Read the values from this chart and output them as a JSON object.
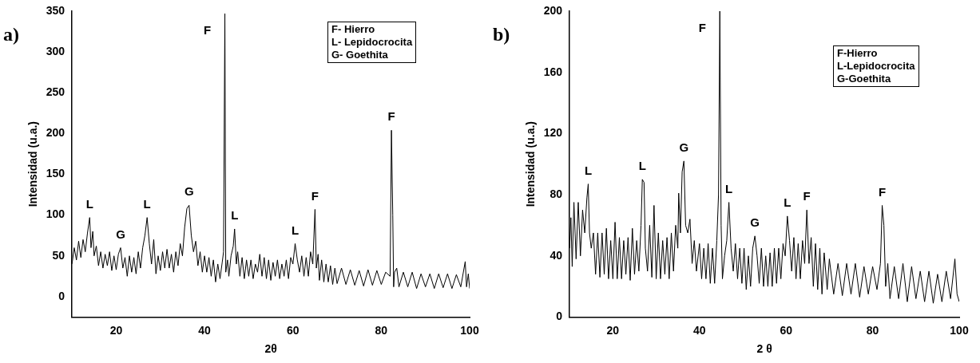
{
  "chart_data": [
    {
      "type": "line",
      "title": "a)",
      "xlabel": "2θ",
      "ylabel": "Intensidad (u.a.)",
      "xlim": [
        10,
        100
      ],
      "xticks": [
        20,
        40,
        60,
        80,
        100
      ],
      "ylim": [
        -25,
        350
      ],
      "yticks": [
        0,
        50,
        100,
        150,
        200,
        250,
        300,
        350
      ],
      "grid": false,
      "legend": false,
      "marker": "none",
      "line_style": "solid",
      "series": [
        {
          "color": "#000000",
          "x": [
            10,
            10.5,
            11,
            11.5,
            12,
            12.5,
            13,
            13.5,
            14,
            14.3,
            14.7,
            15,
            15.5,
            16,
            16.5,
            17,
            17.5,
            18,
            18.5,
            19,
            19.5,
            20,
            20.5,
            21,
            21.5,
            22,
            22.5,
            23,
            23.5,
            24,
            24.5,
            25,
            25.5,
            26,
            26.5,
            27,
            27.5,
            28,
            28.5,
            29,
            29.5,
            30,
            30.5,
            31,
            31.5,
            32,
            32.5,
            33,
            33.5,
            34,
            34.5,
            35,
            35.5,
            36,
            36.5,
            37,
            37.5,
            38,
            38.5,
            39,
            39.5,
            40,
            40.5,
            41,
            41.5,
            42,
            42.5,
            43,
            43.5,
            44,
            44.3,
            44.6,
            44.8,
            45.2,
            45.5,
            46,
            46.5,
            46.8,
            47.2,
            47.5,
            48,
            48.5,
            49,
            49.5,
            50,
            50.5,
            51,
            51.5,
            52,
            52.5,
            53,
            53.5,
            54,
            54.5,
            55,
            55.5,
            56,
            56.5,
            57,
            57.5,
            58,
            58.5,
            59,
            59.5,
            60,
            60.5,
            61,
            61.5,
            62,
            62.5,
            63,
            63.5,
            64,
            64.5,
            65,
            65.3,
            65.7,
            66,
            66.5,
            67,
            67.5,
            68,
            68.5,
            69,
            69.5,
            70,
            71,
            72,
            73,
            74,
            75,
            76,
            77,
            78,
            79,
            80,
            81,
            82,
            82.3,
            82.6,
            82.8,
            83,
            83.5,
            84,
            85,
            86,
            87,
            88,
            89,
            90,
            91,
            92,
            93,
            94,
            95,
            96,
            97,
            98,
            99,
            99.3,
            99.7,
            100
          ],
          "values": [
            40,
            60,
            45,
            68,
            48,
            70,
            55,
            78,
            97,
            60,
            80,
            50,
            62,
            38,
            55,
            35,
            52,
            38,
            55,
            32,
            50,
            33,
            52,
            60,
            35,
            48,
            25,
            50,
            30,
            48,
            28,
            55,
            35,
            60,
            75,
            97,
            65,
            40,
            70,
            28,
            50,
            32,
            55,
            35,
            58,
            35,
            52,
            30,
            55,
            38,
            65,
            50,
            85,
            108,
            112,
            75,
            55,
            68,
            38,
            55,
            30,
            50,
            30,
            48,
            25,
            45,
            18,
            40,
            22,
            42,
            55,
            347,
            30,
            45,
            25,
            50,
            62,
            83,
            40,
            55,
            25,
            48,
            22,
            45,
            25,
            45,
            22,
            40,
            30,
            52,
            25,
            48,
            22,
            45,
            20,
            42,
            25,
            45,
            22,
            40,
            25,
            45,
            22,
            48,
            40,
            65,
            45,
            30,
            50,
            25,
            48,
            25,
            55,
            40,
            107,
            35,
            52,
            20,
            45,
            18,
            40,
            18,
            38,
            15,
            35,
            16,
            35,
            15,
            33,
            14,
            32,
            13,
            33,
            14,
            32,
            15,
            30,
            25,
            204,
            100,
            12,
            30,
            35,
            12,
            30,
            12,
            30,
            10,
            28,
            12,
            28,
            10,
            28,
            11,
            28,
            10,
            27,
            12,
            43,
            12,
            28,
            10
          ]
        }
      ],
      "annotations": [
        "F- Hierro",
        "L- Lepidocrocita",
        "G- Goethita",
        {
          "text": "L",
          "x": 14,
          "y": 97
        },
        {
          "text": "G",
          "x": 21,
          "y": 60
        },
        {
          "text": "L",
          "x": 27,
          "y": 97
        },
        {
          "text": "G",
          "x": 36.5,
          "y": 112
        },
        {
          "text": "F",
          "x": 44.6,
          "y": 347
        },
        {
          "text": "L",
          "x": 46.8,
          "y": 83
        },
        {
          "text": "L",
          "x": 60.5,
          "y": 65
        },
        {
          "text": "F",
          "x": 65,
          "y": 107
        },
        {
          "text": "F",
          "x": 82.3,
          "y": 204
        }
      ]
    },
    {
      "type": "line",
      "title": "b)",
      "xlabel": "2 θ",
      "ylabel": "Intensidad (u.a.)",
      "xlim": [
        10,
        100
      ],
      "xticks": [
        20,
        40,
        60,
        80,
        100
      ],
      "ylim": [
        0,
        200
      ],
      "yticks": [
        0,
        40,
        80,
        120,
        160,
        200
      ],
      "grid": false,
      "legend": false,
      "marker": "none",
      "line_style": "solid",
      "series": [
        {
          "color": "#000000",
          "x": [
            10,
            10.3,
            10.6,
            11,
            11.5,
            12,
            12.5,
            13,
            13.5,
            14,
            14.3,
            14.6,
            15,
            15.5,
            16,
            16.5,
            17,
            17.5,
            18,
            18.5,
            19,
            19.5,
            20,
            20.5,
            21,
            21.5,
            22,
            22.5,
            23,
            23.5,
            24,
            24.5,
            25,
            25.5,
            26,
            26.5,
            26.8,
            27.2,
            27.5,
            28,
            28.5,
            29,
            29.5,
            30,
            30.5,
            31,
            31.5,
            32,
            32.5,
            33,
            33.5,
            34,
            34.5,
            35,
            35.2,
            35.6,
            36,
            36.4,
            36.8,
            37.3,
            37.8,
            38.3,
            38.8,
            39.3,
            40,
            40.5,
            41,
            41.5,
            42,
            42.5,
            43,
            43.5,
            44,
            44.4,
            44.7,
            45,
            45.3,
            45.8,
            46.3,
            46.8,
            47.3,
            47.8,
            48.3,
            48.8,
            49.3,
            49.8,
            50.3,
            50.8,
            51.3,
            51.8,
            52.3,
            52.8,
            53.3,
            53.8,
            54.3,
            54.8,
            55.3,
            55.8,
            56.3,
            56.8,
            57.3,
            57.8,
            58.3,
            58.8,
            59.3,
            59.8,
            60.3,
            60.8,
            61.3,
            61.8,
            62.3,
            62.8,
            63.3,
            63.8,
            64.3,
            64.8,
            65.3,
            65.8,
            66.3,
            66.8,
            67.3,
            67.8,
            68.3,
            68.8,
            69.5,
            70,
            71,
            72,
            73,
            74,
            75,
            76,
            77,
            78,
            79,
            80,
            81,
            81.8,
            82.2,
            82.6,
            83,
            83.5,
            84,
            85,
            86,
            87,
            88,
            89,
            90,
            91,
            92,
            93,
            94,
            95,
            96,
            97,
            98,
            99,
            99.5,
            100
          ],
          "values": [
            45,
            65,
            33,
            75,
            38,
            75,
            40,
            70,
            55,
            78,
            87,
            55,
            45,
            55,
            28,
            55,
            26,
            55,
            28,
            58,
            25,
            50,
            25,
            62,
            25,
            52,
            25,
            50,
            28,
            52,
            24,
            58,
            28,
            50,
            30,
            60,
            90,
            88,
            45,
            30,
            60,
            26,
            73,
            25,
            55,
            25,
            50,
            28,
            52,
            25,
            55,
            30,
            60,
            45,
            81,
            55,
            95,
            102,
            60,
            55,
            64,
            35,
            50,
            30,
            48,
            25,
            45,
            25,
            48,
            22,
            45,
            22,
            50,
            80,
            200,
            60,
            25,
            40,
            50,
            75,
            45,
            30,
            48,
            25,
            45,
            22,
            45,
            18,
            40,
            20,
            45,
            53,
            40,
            22,
            45,
            20,
            40,
            20,
            42,
            20,
            45,
            22,
            45,
            25,
            48,
            40,
            66,
            50,
            30,
            52,
            25,
            48,
            25,
            50,
            35,
            70,
            35,
            52,
            20,
            48,
            18,
            45,
            15,
            42,
            18,
            38,
            15,
            35,
            14,
            35,
            15,
            35,
            13,
            33,
            15,
            33,
            18,
            35,
            73,
            60,
            20,
            35,
            12,
            33,
            12,
            35,
            10,
            33,
            12,
            30,
            10,
            30,
            9,
            28,
            10,
            30,
            12,
            38,
            15,
            10
          ]
        }
      ],
      "annotations": [
        "F-Hierro",
        "L-Lepidocrocita",
        "G-Goethita",
        {
          "text": "L",
          "x": 14.3,
          "y": 87
        },
        {
          "text": "L",
          "x": 26.8,
          "y": 90
        },
        {
          "text": "G",
          "x": 36.4,
          "y": 102
        },
        {
          "text": "F",
          "x": 44.7,
          "y": 200
        },
        {
          "text": "L",
          "x": 46.8,
          "y": 75
        },
        {
          "text": "G",
          "x": 52.8,
          "y": 53
        },
        {
          "text": "L",
          "x": 60.3,
          "y": 66
        },
        {
          "text": "F",
          "x": 64.8,
          "y": 70
        },
        {
          "text": "F",
          "x": 82.2,
          "y": 73
        }
      ]
    }
  ]
}
